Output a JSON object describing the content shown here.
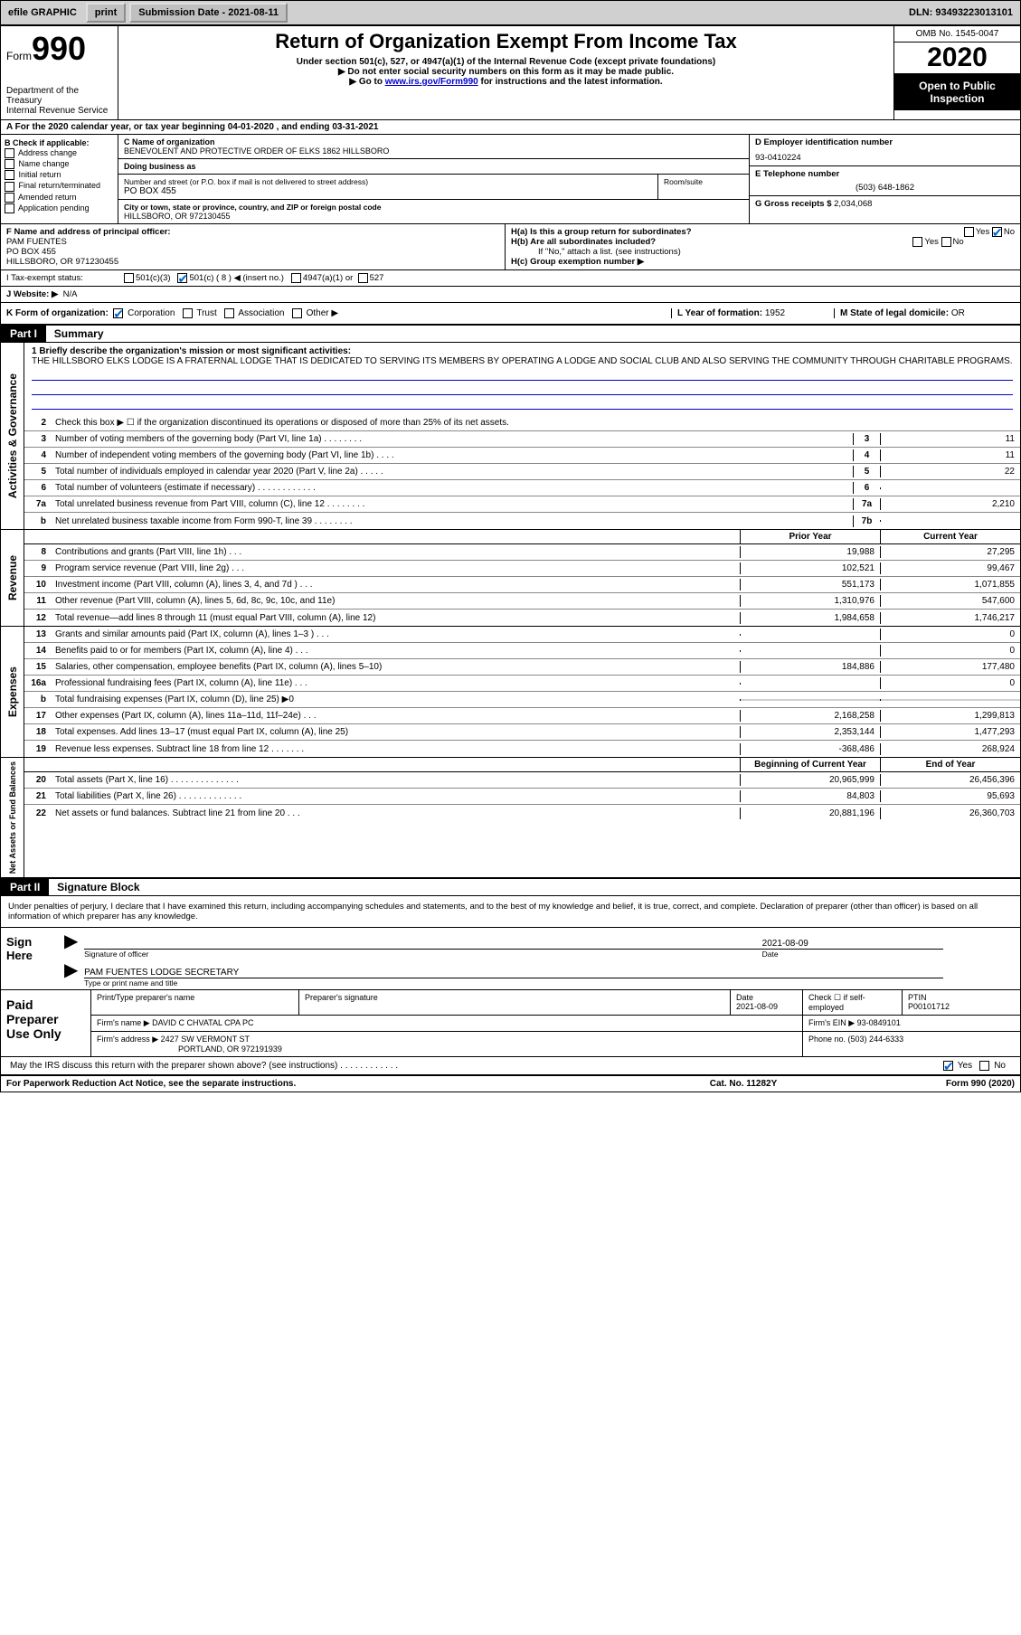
{
  "topbar": {
    "efile": "efile GRAPHIC",
    "print": "print",
    "submission_label": "Submission Date - ",
    "submission_date": "2021-08-11",
    "dln_label": "DLN: ",
    "dln": "93493223013101"
  },
  "header": {
    "form_word": "Form",
    "form_number": "990",
    "dept": "Department of the Treasury",
    "irs": "Internal Revenue Service",
    "title": "Return of Organization Exempt From Income Tax",
    "subtitle1": "Under section 501(c), 527, or 4947(a)(1) of the Internal Revenue Code (except private foundations)",
    "subtitle2": "▶ Do not enter social security numbers on this form as it may be made public.",
    "subtitle3_pre": "▶ Go to ",
    "subtitle3_link": "www.irs.gov/Form990",
    "subtitle3_post": " for instructions and the latest information.",
    "omb": "OMB No. 1545-0047",
    "year": "2020",
    "inspect": "Open to Public Inspection"
  },
  "line_a": "A For the 2020 calendar year, or tax year beginning 04-01-2020     , and ending 03-31-2021",
  "box_b": {
    "label": "B Check if applicable:",
    "items": [
      "Address change",
      "Name change",
      "Initial return",
      "Final return/terminated",
      "Amended return",
      "Application pending"
    ]
  },
  "box_c": {
    "name_label": "C Name of organization",
    "name": "BENEVOLENT AND PROTECTIVE ORDER OF ELKS 1862 HILLSBORO",
    "dba_label": "Doing business as",
    "dba": "",
    "street_label": "Number and street (or P.O. box if mail is not delivered to street address)",
    "street": "PO BOX 455",
    "room_label": "Room/suite",
    "room": "",
    "city_label": "City or town, state or province, country, and ZIP or foreign postal code",
    "city": "HILLSBORO, OR  972130455"
  },
  "box_d": {
    "label": "D Employer identification number",
    "value": "93-0410224"
  },
  "box_e": {
    "label": "E Telephone number",
    "value": "(503) 648-1862"
  },
  "box_g": {
    "label": "G Gross receipts $ ",
    "value": "2,034,068"
  },
  "box_f": {
    "label": "F Name and address of principal officer:",
    "name": "PAM FUENTES",
    "addr1": "PO BOX 455",
    "addr2": "HILLSBORO, OR  971230455"
  },
  "box_h": {
    "a_label": "H(a)  Is this a group return for subordinates?",
    "a_yes": "Yes",
    "a_no": "No",
    "b_label": "H(b)  Are all subordinates included?",
    "b_note": "If \"No,\" attach a list. (see instructions)",
    "c_label": "H(c)  Group exemption number ▶"
  },
  "box_i": {
    "label": "I   Tax-exempt status:",
    "opts": [
      "501(c)(3)",
      "501(c) ( 8 ) ◀ (insert no.)",
      "4947(a)(1) or",
      "527"
    ],
    "checked_index": 1
  },
  "box_j": {
    "label": "J   Website: ▶",
    "value": "N/A"
  },
  "box_k": {
    "label": "K Form of organization:",
    "opts": [
      "Corporation",
      "Trust",
      "Association",
      "Other ▶"
    ],
    "checked_index": 0
  },
  "box_l": {
    "label": "L Year of formation: ",
    "value": "1952"
  },
  "box_m": {
    "label": "M State of legal domicile: ",
    "value": "OR"
  },
  "part1": {
    "tag": "Part I",
    "title": "Summary",
    "q1_label": "1   Briefly describe the organization's mission or most significant activities:",
    "q1_text": "THE HILLSBORO ELKS LODGE IS A FRATERNAL LODGE THAT IS DEDICATED TO SERVING ITS MEMBERS BY OPERATING A LODGE AND SOCIAL CLUB AND ALSO SERVING THE COMMUNITY THROUGH CHARITABLE PROGRAMS.",
    "q2": "Check this box ▶ ☐  if the organization discontinued its operations or disposed of more than 25% of its net assets."
  },
  "sections": {
    "activities": "Activities & Governance",
    "revenue": "Revenue",
    "expenses": "Expenses",
    "netassets": "Net Assets or Fund Balances"
  },
  "col_headers": {
    "prior": "Prior Year",
    "current": "Current Year",
    "begin": "Beginning of Current Year",
    "end": "End of Year"
  },
  "lines_ag": [
    {
      "n": "3",
      "d": "Number of voting members of the governing body (Part VI, line 1a)   .    .    .    .    .    .    .    .",
      "box": "3",
      "cur": "11"
    },
    {
      "n": "4",
      "d": "Number of independent voting members of the governing body (Part VI, line 1b)    .    .    .    .",
      "box": "4",
      "cur": "11"
    },
    {
      "n": "5",
      "d": "Total number of individuals employed in calendar year 2020 (Part V, line 2a)   .    .    .    .    .",
      "box": "5",
      "cur": "22"
    },
    {
      "n": "6",
      "d": "Total number of volunteers (estimate if necessary)     .    .    .    .    .    .    .    .    .    .    .    .",
      "box": "6",
      "cur": ""
    },
    {
      "n": "7a",
      "d": "Total unrelated business revenue from Part VIII, column (C), line 12   .    .    .    .    .    .    .    .",
      "box": "7a",
      "cur": "2,210"
    },
    {
      "n": "b",
      "d": "Net unrelated business taxable income from Form 990-T, line 39    .    .    .    .    .    .    .    .",
      "box": "7b",
      "cur": ""
    }
  ],
  "lines_rev": [
    {
      "n": "8",
      "d": "Contributions and grants (Part VIII, line 1h)    .    .    .",
      "py": "19,988",
      "cy": "27,295"
    },
    {
      "n": "9",
      "d": "Program service revenue (Part VIII, line 2g)    .    .    .",
      "py": "102,521",
      "cy": "99,467"
    },
    {
      "n": "10",
      "d": "Investment income (Part VIII, column (A), lines 3, 4, and 7d )    .    .    .",
      "py": "551,173",
      "cy": "1,071,855"
    },
    {
      "n": "11",
      "d": "Other revenue (Part VIII, column (A), lines 5, 6d, 8c, 9c, 10c, and 11e)",
      "py": "1,310,976",
      "cy": "547,600"
    },
    {
      "n": "12",
      "d": "Total revenue—add lines 8 through 11 (must equal Part VIII, column (A), line 12)",
      "py": "1,984,658",
      "cy": "1,746,217"
    }
  ],
  "lines_exp": [
    {
      "n": "13",
      "d": "Grants and similar amounts paid (Part IX, column (A), lines 1–3 )   .    .    .",
      "py": "",
      "cy": "0"
    },
    {
      "n": "14",
      "d": "Benefits paid to or for members (Part IX, column (A), line 4)   .    .    .",
      "py": "",
      "cy": "0"
    },
    {
      "n": "15",
      "d": "Salaries, other compensation, employee benefits (Part IX, column (A), lines 5–10)",
      "py": "184,886",
      "cy": "177,480"
    },
    {
      "n": "16a",
      "d": "Professional fundraising fees (Part IX, column (A), line 11e)   .    .    .",
      "py": "",
      "cy": "0"
    },
    {
      "n": "b",
      "d": "Total fundraising expenses (Part IX, column (D), line 25) ▶0",
      "py": "shade",
      "cy": "shade"
    },
    {
      "n": "17",
      "d": "Other expenses (Part IX, column (A), lines 11a–11d, 11f–24e)   .    .    .",
      "py": "2,168,258",
      "cy": "1,299,813"
    },
    {
      "n": "18",
      "d": "Total expenses. Add lines 13–17 (must equal Part IX, column (A), line 25)",
      "py": "2,353,144",
      "cy": "1,477,293"
    },
    {
      "n": "19",
      "d": "Revenue less expenses. Subtract line 18 from line 12   .    .    .    .    .    .    .",
      "py": "-368,486",
      "cy": "268,924"
    }
  ],
  "lines_na": [
    {
      "n": "20",
      "d": "Total assets (Part X, line 16)   .    .    .    .    .    .    .    .    .    .    .    .    .    .",
      "py": "20,965,999",
      "cy": "26,456,396"
    },
    {
      "n": "21",
      "d": "Total liabilities (Part X, line 26)   .    .    .    .    .    .    .    .    .    .    .    .    .",
      "py": "84,803",
      "cy": "95,693"
    },
    {
      "n": "22",
      "d": "Net assets or fund balances. Subtract line 21 from line 20   .    .    .",
      "py": "20,881,196",
      "cy": "26,360,703"
    }
  ],
  "part2": {
    "tag": "Part II",
    "title": "Signature Block",
    "jurat": "Under penalties of perjury, I declare that I have examined this return, including accompanying schedules and statements, and to the best of my knowledge and belief, it is true, correct, and complete. Declaration of preparer (other than officer) is based on all information of which preparer has any knowledge."
  },
  "sign": {
    "label": "Sign Here",
    "sig_of_officer": "Signature of officer",
    "date_label": "Date",
    "date": "2021-08-09",
    "name_title": "PAM FUENTES  LODGE SECRETARY",
    "type_label": "Type or print name and title"
  },
  "prep": {
    "label": "Paid Preparer Use Only",
    "cols": [
      "Print/Type preparer's name",
      "Preparer's signature",
      "Date",
      "",
      "PTIN"
    ],
    "date": "2021-08-09",
    "check_label": "Check ☐ if self-employed",
    "ptin": "P00101712",
    "firm_name_label": "Firm's name      ▶",
    "firm_name": "DAVID C CHVATAL CPA PC",
    "firm_ein_label": "Firm's EIN ▶",
    "firm_ein": "93-0849101",
    "firm_addr_label": "Firm's address ▶",
    "firm_addr1": "2427 SW VERMONT ST",
    "firm_addr2": "PORTLAND, OR  972191939",
    "phone_label": "Phone no. ",
    "phone": "(503) 244-6333"
  },
  "discuss": {
    "q": "May the IRS discuss this return with the preparer shown above? (see instructions)   .    .    .    .    .    .    .    .    .    .    .    .",
    "yes": "Yes",
    "no": "No"
  },
  "footer": {
    "left": "For Paperwork Reduction Act Notice, see the separate instructions.",
    "mid": "Cat. No. 11282Y",
    "right": "Form 990 (2020)"
  },
  "colors": {
    "link": "#0000cc",
    "header_bg": "#000000",
    "shade": "#d0d0d0",
    "check": "#0066cc"
  }
}
